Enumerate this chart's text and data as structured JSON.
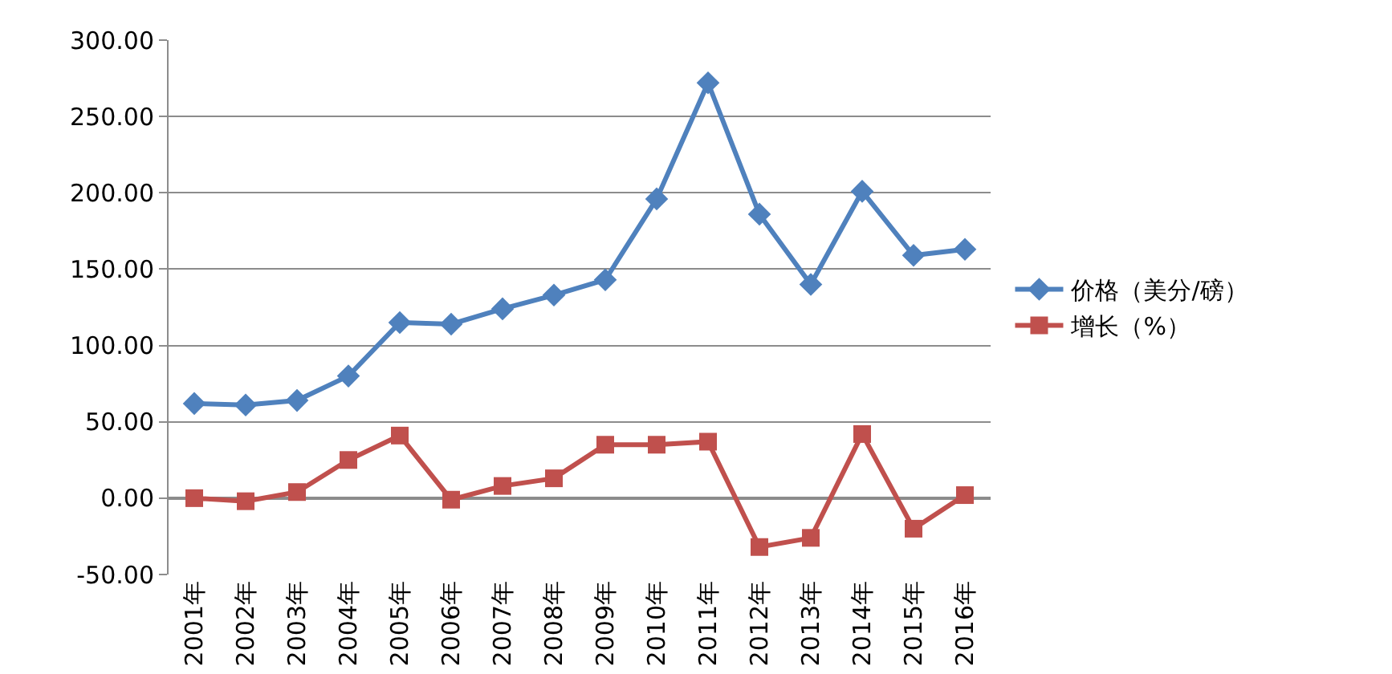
{
  "chart_data": {
    "type": "line",
    "categories": [
      "2001年",
      "2002年",
      "2003年",
      "2004年",
      "2005年",
      "2006年",
      "2007年",
      "2008年",
      "2009年",
      "2010年",
      "2011年",
      "2012年",
      "2013年",
      "2014年",
      "2015年",
      "2016年"
    ],
    "series": [
      {
        "name": "价格（美分/磅）",
        "color": "#4f81bd",
        "marker": "diamond",
        "values": [
          62,
          61,
          64,
          80,
          115,
          114,
          124,
          133,
          143,
          196,
          272,
          186,
          140,
          201,
          159,
          163
        ]
      },
      {
        "name": "增长（%）",
        "color": "#c0504d",
        "marker": "square",
        "values": [
          0,
          -2,
          4,
          25,
          41,
          -1,
          8,
          13,
          35,
          35,
          37,
          -32,
          -26,
          42,
          -20,
          2
        ]
      }
    ],
    "ylim": [
      -50,
      300
    ],
    "yticks": [
      {
        "value": -50,
        "label": "-50.00"
      },
      {
        "value": 0,
        "label": "0.00"
      },
      {
        "value": 50,
        "label": "50.00"
      },
      {
        "value": 100,
        "label": "100.00"
      },
      {
        "value": 150,
        "label": "150.00"
      },
      {
        "value": 200,
        "label": "200.00"
      },
      {
        "value": 250,
        "label": "250.00"
      },
      {
        "value": 300,
        "label": "300.00"
      }
    ],
    "grid": "y",
    "legend": "right",
    "line_style": "solid"
  }
}
